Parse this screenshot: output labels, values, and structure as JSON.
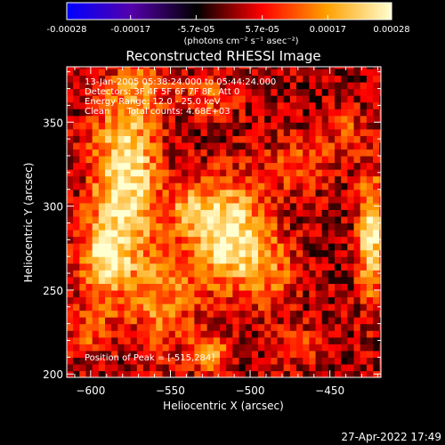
{
  "colorbar": {
    "tick_labels": [
      "-0.00028",
      "-0.00017",
      "-5.7e-05",
      "5.7e-05",
      "0.00017",
      "0.00028"
    ],
    "tick_values": [
      -0.00028,
      -0.00017,
      -5.7e-05,
      5.7e-05,
      0.00017,
      0.00028
    ],
    "range": [
      -0.00028,
      0.00028
    ],
    "units_label": "(photons cm⁻² s⁻¹ asec⁻²)",
    "colormap": [
      "#0000ff",
      "#5500aa",
      "#000000",
      "#ff0000",
      "#ffa000",
      "#ffffd0"
    ]
  },
  "chart_data": {
    "type": "heatmap",
    "title": "Reconstructed RHESSI Image",
    "xlabel": "Heliocentric X (arcsec)",
    "ylabel": "Heliocentric Y (arcsec)",
    "xlim": [
      -615,
      -418
    ],
    "ylim": [
      198,
      383
    ],
    "x_ticks": [
      -600,
      -550,
      -500,
      -450
    ],
    "y_ticks": [
      200,
      250,
      300,
      350
    ],
    "x_tick_labels": [
      "−600",
      "−550",
      "−500",
      "−450"
    ],
    "y_tick_labels": [
      "200",
      "250",
      "300",
      "350"
    ],
    "annotations": {
      "line1": "13-Jan-2005 05:38:24.000 to 05:44:24.000",
      "line2": "Detectors: 3F 4F 5F 6F 7F 8F, Att 0",
      "line3": "Energy Range: 12.0 - 25.0 keV",
      "line4": "Clean      Total counts: 4.68E+03",
      "peak": "Position of Peak = [-515,284]"
    },
    "peak_position": [
      -515,
      284
    ],
    "sources": [
      {
        "x": -578,
        "y": 318,
        "sx": 14,
        "sy": 34,
        "amp": 0.00027
      },
      {
        "x": -592,
        "y": 268,
        "sx": 12,
        "sy": 18,
        "amp": 0.00018
      },
      {
        "x": -555,
        "y": 245,
        "sx": 14,
        "sy": 22,
        "amp": 0.00014
      },
      {
        "x": -515,
        "y": 284,
        "sx": 16,
        "sy": 22,
        "amp": 0.00028
      },
      {
        "x": -488,
        "y": 262,
        "sx": 12,
        "sy": 16,
        "amp": 0.00012
      },
      {
        "x": -470,
        "y": 325,
        "sx": 14,
        "sy": 12,
        "amp": 0.0001
      },
      {
        "x": -424,
        "y": 282,
        "sx": 6,
        "sy": 26,
        "amp": 0.00024
      },
      {
        "x": -565,
        "y": 372,
        "sx": 12,
        "sy": 8,
        "amp": 0.00011
      },
      {
        "x": -525,
        "y": 365,
        "sx": 12,
        "sy": 8,
        "amp": 9e-05
      },
      {
        "x": -440,
        "y": 345,
        "sx": 10,
        "sy": 10,
        "amp": 8e-05
      },
      {
        "x": -525,
        "y": 212,
        "sx": 8,
        "sy": 8,
        "amp": 0.00016
      },
      {
        "x": -470,
        "y": 218,
        "sx": 12,
        "sy": 8,
        "amp": 8e-05
      },
      {
        "x": -600,
        "y": 225,
        "sx": 10,
        "sy": 10,
        "amp": 9e-05
      },
      {
        "x": -540,
        "y": 300,
        "sx": 8,
        "sy": 10,
        "amp": 0.00011
      }
    ],
    "background_level": 2e-05,
    "grid": false
  },
  "footer": {
    "timestamp": "27-Apr-2022 17:49"
  }
}
